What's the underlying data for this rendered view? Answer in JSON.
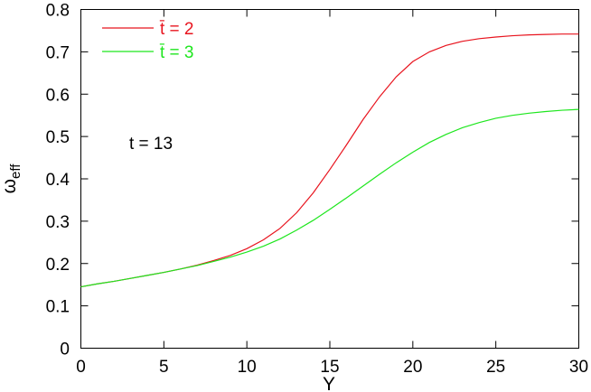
{
  "chart_data": {
    "type": "line",
    "xlabel": "Y",
    "ylabel": "ω",
    "ylabel_sub": "eff",
    "xlim": [
      0,
      30
    ],
    "ylim": [
      0,
      0.8
    ],
    "x_ticks": [
      0,
      5,
      10,
      15,
      20,
      25,
      30
    ],
    "y_ticks": [
      0,
      0.1,
      0.2,
      0.3,
      0.4,
      0.5,
      0.6,
      0.7,
      0.8
    ],
    "x_tick_labels": [
      "0",
      "5",
      "10",
      "15",
      "20",
      "25",
      "30"
    ],
    "y_tick_labels": [
      "0",
      "0.1",
      "0.2",
      "0.3",
      "0.4",
      "0.5",
      "0.6",
      "0.7",
      "0.8"
    ],
    "grid": false,
    "legend_position": "top-left",
    "annotation": "t = 13",
    "series": [
      {
        "name": "t̄ = 2",
        "color": "#e8141e",
        "x": [
          0,
          1,
          2,
          3,
          4,
          5,
          6,
          7,
          8,
          9,
          10,
          11,
          12,
          13,
          14,
          15,
          16,
          17,
          18,
          19,
          20,
          21,
          22,
          23,
          24,
          25,
          26,
          27,
          28,
          29,
          30
        ],
        "y": [
          0.145,
          0.152,
          0.158,
          0.165,
          0.172,
          0.179,
          0.187,
          0.196,
          0.207,
          0.219,
          0.235,
          0.256,
          0.283,
          0.32,
          0.367,
          0.422,
          0.48,
          0.54,
          0.594,
          0.641,
          0.677,
          0.7,
          0.715,
          0.725,
          0.731,
          0.735,
          0.738,
          0.74,
          0.741,
          0.742,
          0.742
        ]
      },
      {
        "name": "t̄ = 3",
        "color": "#1ee61e",
        "x": [
          0,
          1,
          2,
          3,
          4,
          5,
          6,
          7,
          8,
          9,
          10,
          11,
          12,
          13,
          14,
          15,
          16,
          17,
          18,
          19,
          20,
          21,
          22,
          23,
          24,
          25,
          26,
          27,
          28,
          29,
          30
        ],
        "y": [
          0.145,
          0.152,
          0.158,
          0.165,
          0.172,
          0.179,
          0.187,
          0.195,
          0.205,
          0.215,
          0.227,
          0.241,
          0.258,
          0.279,
          0.302,
          0.328,
          0.355,
          0.383,
          0.411,
          0.438,
          0.463,
          0.486,
          0.505,
          0.521,
          0.533,
          0.543,
          0.55,
          0.555,
          0.559,
          0.562,
          0.564
        ]
      }
    ]
  }
}
